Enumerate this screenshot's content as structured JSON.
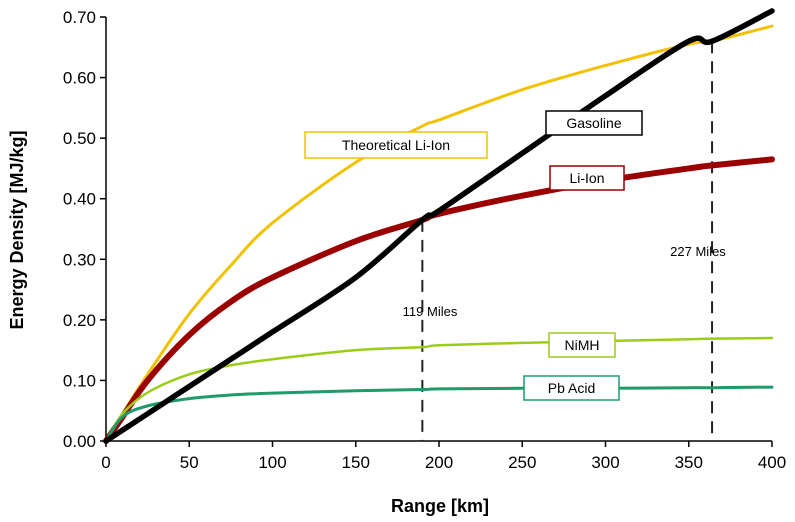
{
  "chart_data": {
    "type": "line",
    "title": "",
    "xlabel": "Range [km]",
    "ylabel": "Energy Density [MJ/kg]",
    "xlim": [
      0,
      400
    ],
    "ylim": [
      0,
      0.7
    ],
    "x_ticks": [
      "0",
      "50",
      "100",
      "150",
      "200",
      "250",
      "300",
      "350",
      "400"
    ],
    "y_ticks": [
      "0.00",
      "0.10",
      "0.20",
      "0.30",
      "0.40",
      "0.50",
      "0.60",
      "0.70"
    ],
    "grid": false,
    "x": [
      0,
      10,
      25,
      50,
      75,
      100,
      150,
      190,
      200,
      250,
      300,
      350,
      364,
      400
    ],
    "series": [
      {
        "name": "Gasoline",
        "color": "#000000",
        "values": [
          0,
          0.018,
          0.045,
          0.09,
          0.135,
          0.18,
          0.27,
          0.365,
          0.38,
          0.475,
          0.57,
          0.66,
          0.66,
          0.71
        ]
      },
      {
        "name": "Theoretical Li-Ion",
        "color": "#f2c200",
        "values": [
          0,
          0.045,
          0.11,
          0.21,
          0.29,
          0.36,
          0.46,
          0.52,
          0.53,
          0.58,
          0.62,
          0.655,
          0.66,
          0.685
        ]
      },
      {
        "name": "Li-Ion",
        "color": "#9b0000",
        "values": [
          0,
          0.04,
          0.1,
          0.175,
          0.23,
          0.27,
          0.33,
          0.365,
          0.375,
          0.405,
          0.43,
          0.45,
          0.455,
          0.465
        ]
      },
      {
        "name": "NiMH",
        "color": "#9ccc1a",
        "values": [
          0,
          0.045,
          0.08,
          0.11,
          0.125,
          0.135,
          0.15,
          0.155,
          0.158,
          0.162,
          0.165,
          0.168,
          0.169,
          0.17
        ]
      },
      {
        "name": "Pb  Acid",
        "color": "#1f9a6a",
        "values": [
          0,
          0.04,
          0.058,
          0.07,
          0.076,
          0.079,
          0.083,
          0.085,
          0.086,
          0.087,
          0.087,
          0.088,
          0.088,
          0.089
        ]
      }
    ],
    "annotations": [
      {
        "text": "119 Miles",
        "x": 190
      },
      {
        "text": "227 Miles",
        "x": 364
      }
    ]
  }
}
